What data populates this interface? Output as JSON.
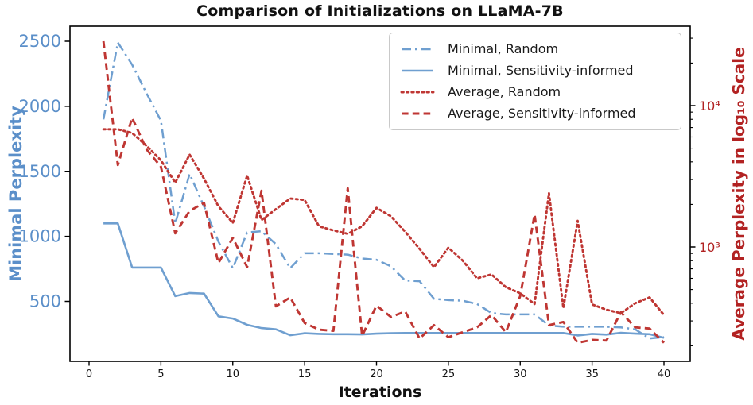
{
  "chart_data": {
    "type": "line",
    "title": "Comparison of Initializations on LLaMA-7B",
    "xlabel": "Iterations",
    "ylabel_left": "Minimal Perplexity",
    "ylabel_right": "Average Perplexity in log₁₀ Scale",
    "grid": false,
    "legend_position": "upper right inside plot",
    "x_range": [
      -1.3,
      41.8
    ],
    "y_left_range": [
      40,
      2615
    ],
    "y_right_range_log": [
      155,
      36500
    ],
    "x_ticks": [
      0,
      5,
      10,
      15,
      20,
      25,
      30,
      35,
      40
    ],
    "y_left_ticks": [
      500,
      1000,
      1500,
      2000,
      2500
    ],
    "y_right_ticks": [
      {
        "value": 10000,
        "label": "10⁴"
      },
      {
        "value": 1000,
        "label": "10³"
      }
    ],
    "colors": {
      "blue_line": "#6f9fd0",
      "blue_text": "#5b8fc9",
      "red_line": "#bf3633",
      "red_text": "#b22222",
      "spine": "#000000"
    },
    "x": [
      1,
      2,
      3,
      4,
      5,
      6,
      7,
      8,
      9,
      10,
      11,
      12,
      13,
      14,
      15,
      16,
      17,
      18,
      19,
      20,
      21,
      22,
      23,
      24,
      25,
      26,
      27,
      28,
      29,
      30,
      31,
      32,
      33,
      34,
      35,
      36,
      37,
      38,
      39,
      40
    ],
    "series": [
      {
        "name": "Minimal, Random",
        "slug": "minimal-random",
        "axis": "left",
        "style": "dashdot",
        "color": "blue",
        "values": [
          1900,
          2490,
          2320,
          2100,
          1890,
          1100,
          1480,
          1230,
          960,
          755,
          1030,
          1040,
          940,
          755,
          870,
          870,
          865,
          860,
          830,
          820,
          770,
          660,
          655,
          520,
          510,
          505,
          480,
          410,
          400,
          400,
          400,
          315,
          305,
          305,
          305,
          305,
          300,
          285,
          215,
          225
        ]
      },
      {
        "name": "Minimal, Sensitivity-informed",
        "slug": "minimal-sensitivity-informed",
        "axis": "left",
        "style": "solid",
        "color": "blue",
        "values": [
          1100,
          1100,
          760,
          760,
          760,
          540,
          565,
          560,
          385,
          368,
          320,
          295,
          285,
          240,
          255,
          250,
          248,
          248,
          246,
          252,
          255,
          257,
          257,
          257,
          257,
          257,
          257,
          257,
          257,
          257,
          257,
          257,
          257,
          238,
          250,
          245,
          258,
          252,
          248,
          220
        ]
      },
      {
        "name": "Average, Random",
        "slug": "average-random",
        "axis": "right",
        "style": "dotted",
        "color": "red",
        "values": [
          6800,
          6800,
          6400,
          5200,
          4100,
          2850,
          4500,
          3040,
          1940,
          1480,
          3200,
          1550,
          1850,
          2200,
          2150,
          1400,
          1310,
          1240,
          1400,
          1890,
          1650,
          1280,
          970,
          720,
          990,
          800,
          600,
          640,
          520,
          470,
          395,
          2400,
          370,
          1530,
          392,
          360,
          340,
          400,
          440,
          330
        ]
      },
      {
        "name": "Average, Sensitivity-informed",
        "slug": "average-sensitivity-informed",
        "axis": "right",
        "style": "dashed",
        "color": "red",
        "values": [
          28500,
          3800,
          8200,
          4900,
          3700,
          1250,
          1800,
          2050,
          770,
          1160,
          720,
          2500,
          380,
          440,
          290,
          260,
          255,
          2600,
          235,
          385,
          320,
          350,
          225,
          280,
          230,
          250,
          270,
          330,
          250,
          450,
          1700,
          280,
          295,
          210,
          220,
          218,
          345,
          270,
          265,
          210
        ]
      }
    ]
  }
}
